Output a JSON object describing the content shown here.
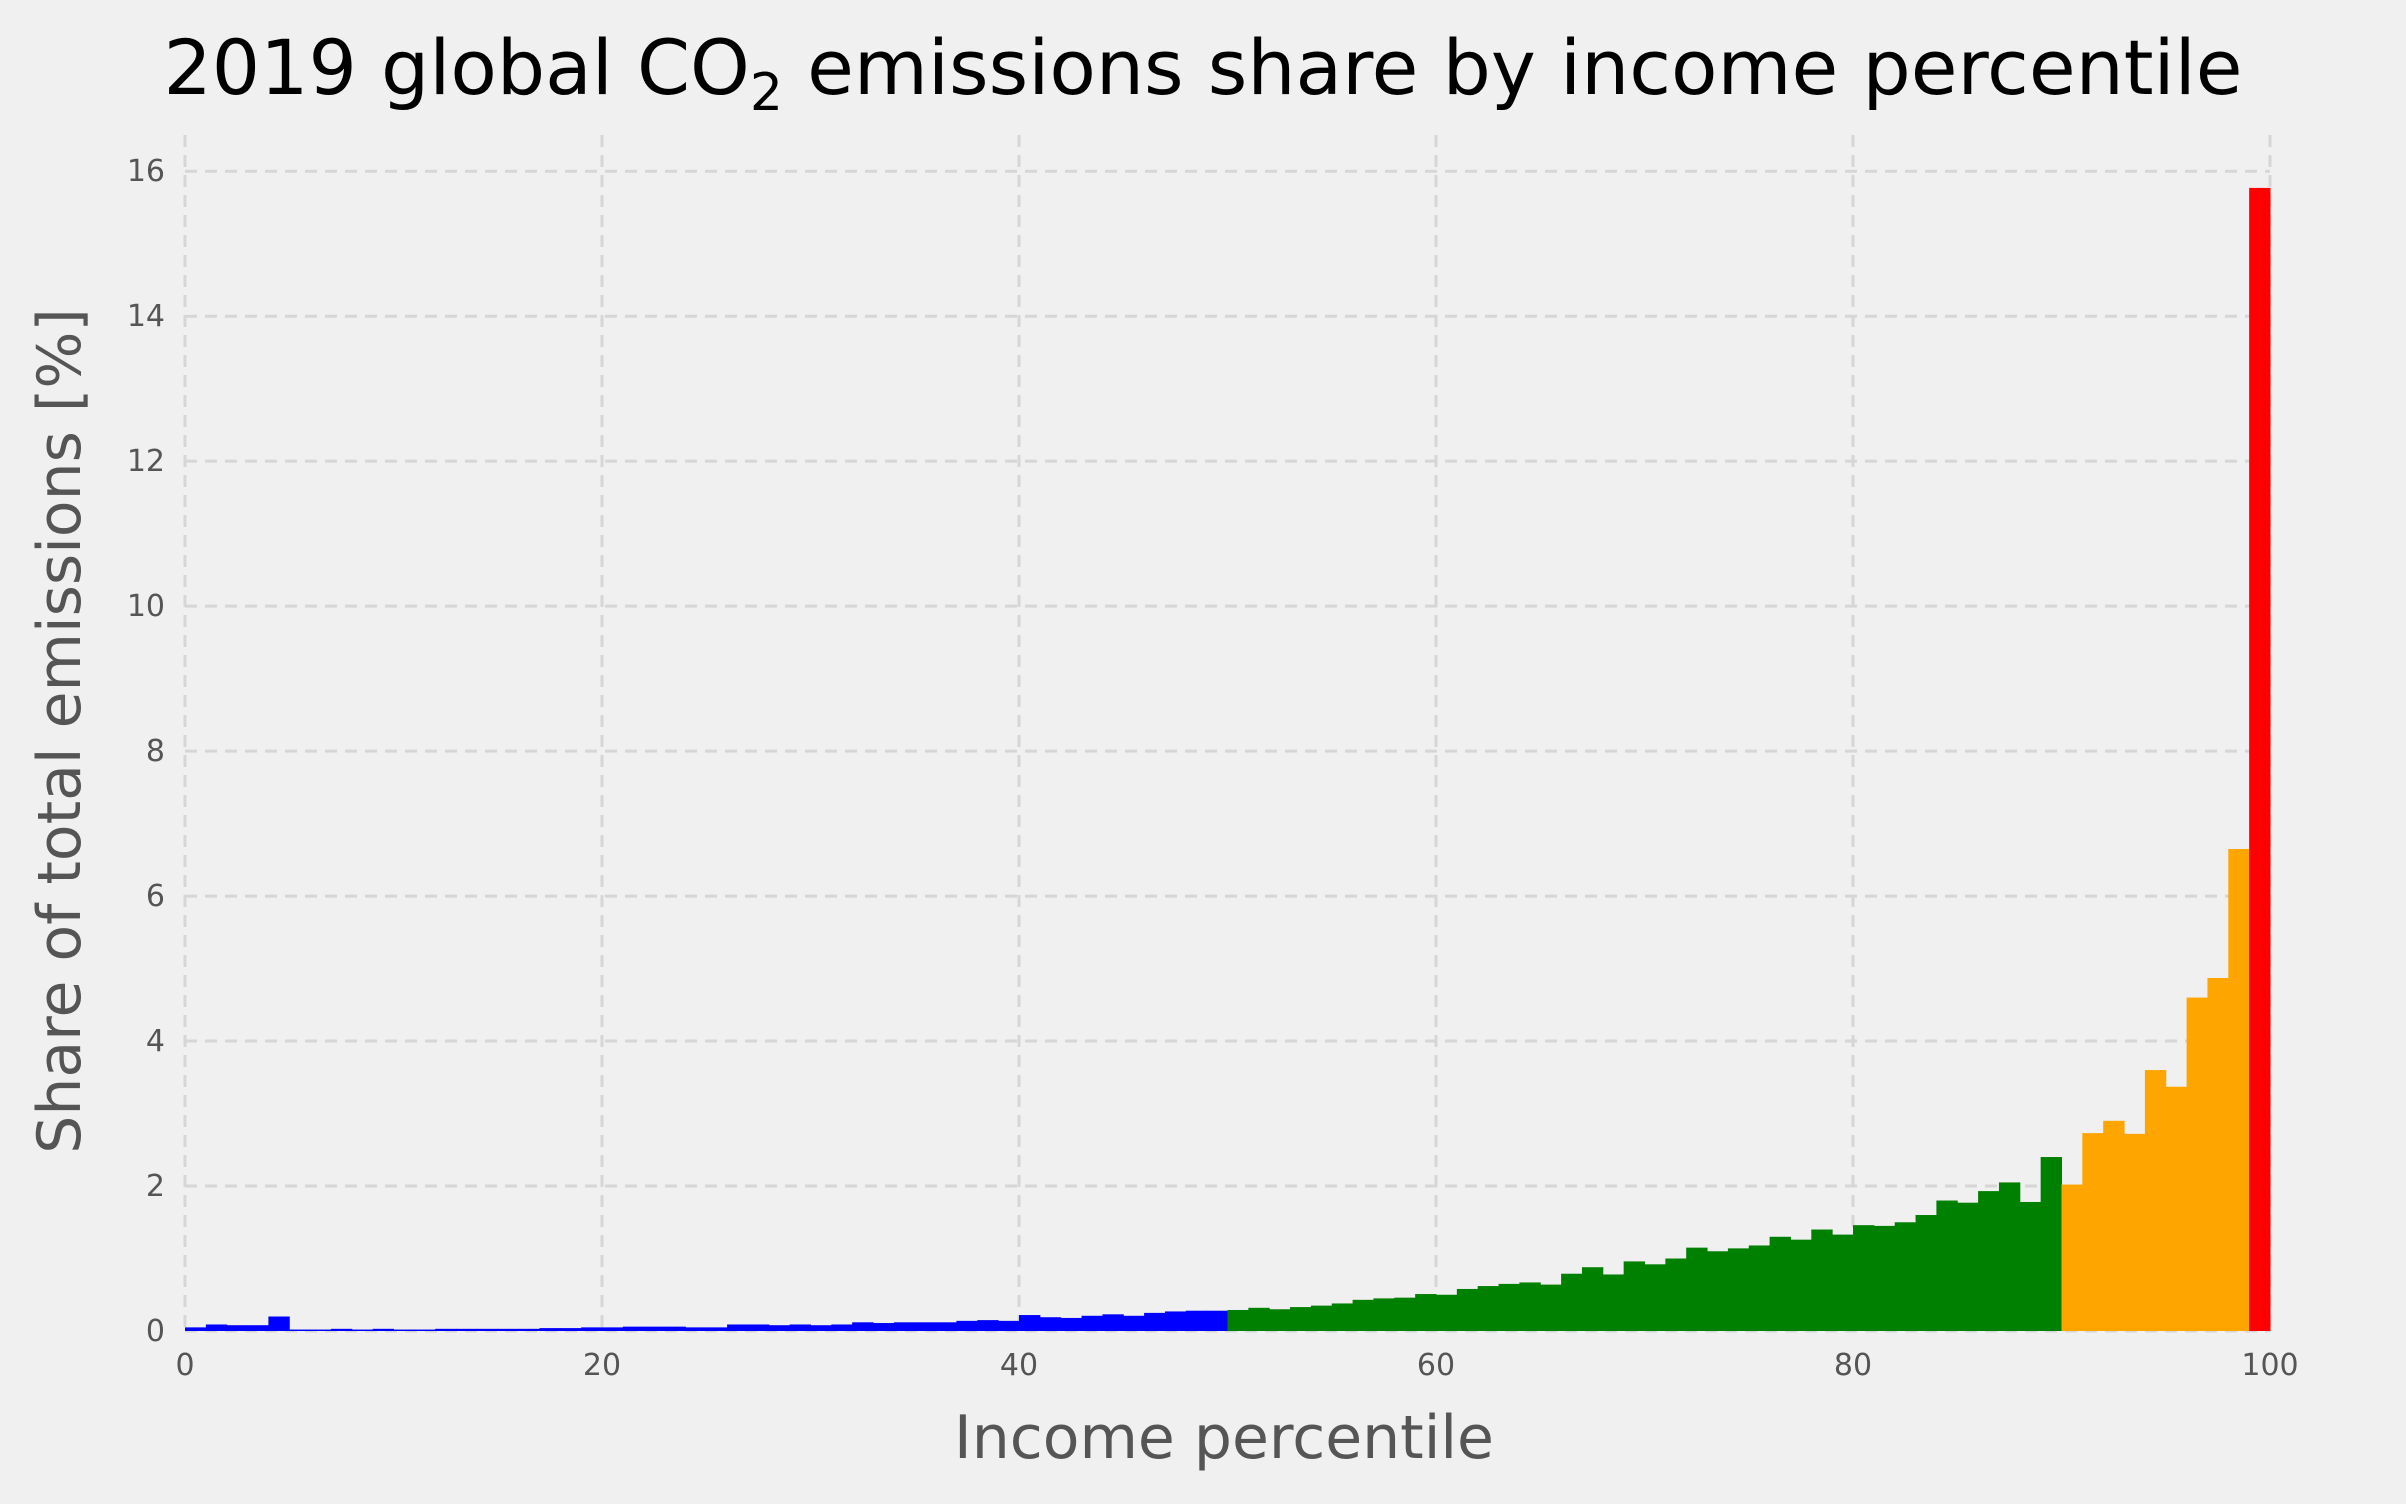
{
  "chart_data": {
    "type": "bar",
    "title": {
      "prefix": "2019 global CO",
      "subscript": "2",
      "suffix": " emissions share by income percentile"
    },
    "xlabel": "Income percentile",
    "ylabel": "Share of total emissions [%]",
    "xlim": [
      0,
      100
    ],
    "ylim": [
      0,
      16.5
    ],
    "xticks": [
      0,
      20,
      40,
      60,
      80,
      100
    ],
    "yticks": [
      0,
      2,
      4,
      6,
      8,
      10,
      12,
      14,
      16
    ],
    "grid": true,
    "legend": "none",
    "x_start": 0,
    "bin_width": 1,
    "values": [
      0.05,
      0.09,
      0.08,
      0.08,
      0.2,
      0.02,
      0.02,
      0.03,
      0.02,
      0.03,
      0.02,
      0.02,
      0.03,
      0.03,
      0.03,
      0.03,
      0.03,
      0.04,
      0.04,
      0.05,
      0.05,
      0.06,
      0.06,
      0.06,
      0.05,
      0.05,
      0.09,
      0.09,
      0.08,
      0.09,
      0.08,
      0.09,
      0.12,
      0.11,
      0.12,
      0.12,
      0.12,
      0.14,
      0.15,
      0.14,
      0.22,
      0.19,
      0.18,
      0.21,
      0.23,
      0.21,
      0.25,
      0.27,
      0.28,
      0.28,
      0.29,
      0.32,
      0.3,
      0.33,
      0.35,
      0.38,
      0.43,
      0.45,
      0.46,
      0.51,
      0.5,
      0.58,
      0.62,
      0.65,
      0.67,
      0.64,
      0.79,
      0.88,
      0.78,
      0.96,
      0.92,
      1.0,
      1.15,
      1.1,
      1.14,
      1.18,
      1.3,
      1.26,
      1.4,
      1.33,
      1.46,
      1.45,
      1.5,
      1.6,
      1.8,
      1.77,
      1.93,
      2.05,
      1.78,
      2.4,
      2.02,
      2.73,
      2.9,
      2.72,
      3.6,
      3.37,
      4.6,
      4.87,
      6.65,
      15.77
    ],
    "segments": [
      {
        "from": 0,
        "to": 50,
        "color": "#0000ff"
      },
      {
        "from": 50,
        "to": 90,
        "color": "#008000"
      },
      {
        "from": 90,
        "to": 99,
        "color": "#ffa500"
      },
      {
        "from": 99,
        "to": 100,
        "color": "#ff0000"
      }
    ]
  }
}
